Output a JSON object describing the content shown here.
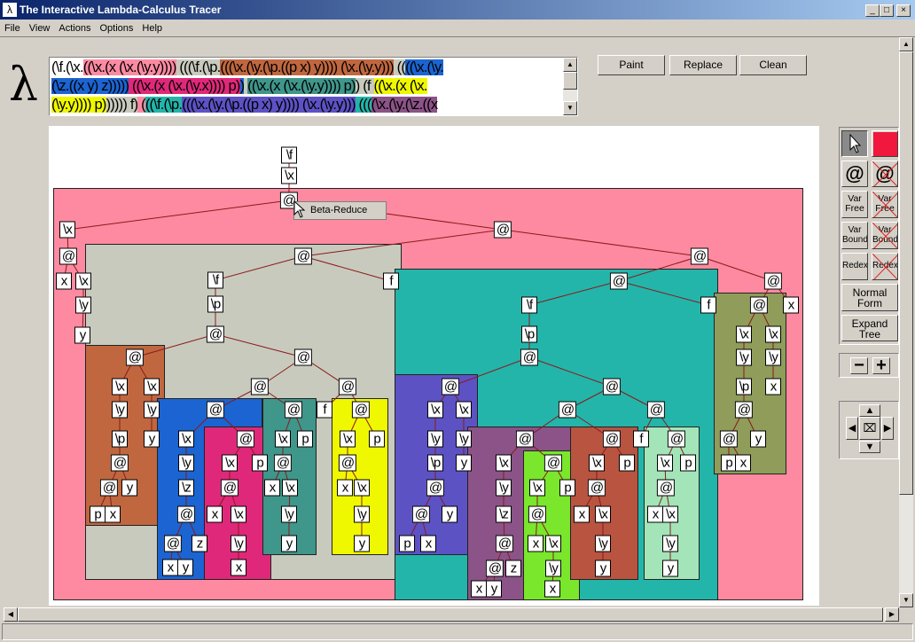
{
  "window": {
    "title": "The Interactive Lambda-Calculus Tracer",
    "icon": "lambda-app-icon",
    "controls": [
      "_",
      "□",
      "×"
    ]
  },
  "menu": [
    "File",
    "View",
    "Actions",
    "Options",
    "Help"
  ],
  "logo": "λ",
  "expression": {
    "lines": [
      [
        {
          "t": "(\\f.(\\x.",
          "c": "#ffffff"
        },
        {
          "t": "((\\x.(x (\\x.(\\y.y))))",
          "c": "#fd8aa2"
        },
        {
          "t": " (((\\f.(\\p.",
          "c": "#c8cabd"
        },
        {
          "t": "(((\\x.(\\y.(\\p.((p x) y)))) (\\x.(\\y.y)))",
          "c": "#c0673f"
        },
        {
          "t": " ((",
          "c": "#c8cabd"
        },
        {
          "t": "((\\x.(\\y.",
          "c": "#1b64d1"
        }
      ],
      [
        {
          "t": "(\\z.((x y) z)))))",
          "c": "#1b64d1"
        },
        {
          "t": " ((\\x.(x (\\x.(\\y.x)))) p)",
          "c": "#e0287a"
        },
        {
          "t": ")",
          "c": "#1b64d1"
        },
        {
          "t": " ",
          "c": "#c8cabd"
        },
        {
          "t": "((\\x.(x (\\x.(\\y.y)))) p)",
          "c": "#3f968a"
        },
        {
          "t": ") (f ",
          "c": "#c8cabd"
        },
        {
          "t": "((\\x.(x (\\x.",
          "c": "#f0f800"
        }
      ],
      [
        {
          "t": "(\\y.y)))) p)",
          "c": "#f0f800"
        },
        {
          "t": "))))) f)",
          "c": "#c8cabd"
        },
        {
          "t": " (",
          "c": "#fd8aa2"
        },
        {
          "t": "((\\f.(\\p.",
          "c": "#23b5aa"
        },
        {
          "t": "(((\\x.(\\y.(\\p.((p x) y)))) (\\x.(\\y.y)))",
          "c": "#5c52c4"
        },
        {
          "t": " (((",
          "c": "#23b5aa"
        },
        {
          "t": "(\\x.(\\y.(\\z.((x",
          "c": "#8b5387"
        }
      ]
    ]
  },
  "buttons": {
    "paint": "Paint",
    "replace": "Replace",
    "clean": "Clean"
  },
  "context_menu": {
    "item": "Beta-Reduce"
  },
  "tree": {
    "region_colors": [
      "#fd8aa0",
      "#c8cabd",
      "#c0673f",
      "#1b64d1",
      "#e0287a",
      "#3f968a",
      "#f0f800",
      "#23b5aa",
      "#5c52c4",
      "#8b5387",
      "#7ae62c",
      "#b85440",
      "#a3e5b8",
      "#8f9c5a"
    ],
    "edge_color": "#8b1a1a",
    "nodes": [
      "\\f",
      "\\x",
      "@",
      "\\x",
      "@",
      "@",
      "x",
      "\\x",
      "\\y",
      "y",
      "@",
      "\\f",
      "f",
      "\\p",
      "@",
      "@",
      "\\x",
      "\\x",
      "\\y",
      "\\y",
      "\\p",
      "y",
      "@",
      "@",
      "y",
      "p",
      "x",
      "@",
      "@",
      "@",
      "@",
      "\\x",
      "\\y",
      "\\z",
      "@",
      "@",
      "z",
      "x",
      "y",
      "@",
      "\\x",
      "p",
      "@",
      "x",
      "\\x",
      "\\y",
      "x",
      "@",
      "\\x",
      "p",
      "@",
      "x",
      "\\x",
      "\\y",
      "y",
      "f",
      "@",
      "\\x",
      "p",
      "@",
      "x",
      "\\x",
      "\\y",
      "y",
      "@",
      "@",
      "\\f",
      "f",
      "\\p",
      "@",
      "@",
      "\\x",
      "\\x",
      "\\y",
      "\\y",
      "\\p",
      "y",
      "@",
      "@",
      "y",
      "p",
      "x",
      "@",
      "@",
      "@",
      "@",
      "\\x",
      "\\y",
      "\\z",
      "@",
      "@",
      "z",
      "x",
      "y",
      "@",
      "\\x",
      "p",
      "@",
      "x",
      "\\x",
      "\\y",
      "x",
      "@",
      "\\x",
      "p",
      "@",
      "x",
      "\\x",
      "\\y",
      "y",
      "f",
      "@",
      "\\x",
      "p",
      "@",
      "x",
      "\\x",
      "\\y",
      "y",
      "@",
      "@",
      "x",
      "\\x",
      "\\x",
      "\\y",
      "\\y",
      "\\p",
      "x",
      "@",
      "@",
      "y",
      "p",
      "x"
    ]
  },
  "toolbox": {
    "pointer": "pointer-tool",
    "color": "#f0183c",
    "app": "@",
    "var_free": "Var\nFree",
    "var_bound": "Var\nBound",
    "redex": "Redex",
    "normal_form": "Normal\nForm",
    "expand_tree": "Expand\nTree",
    "zoom_out": "−",
    "zoom_in": "+"
  }
}
